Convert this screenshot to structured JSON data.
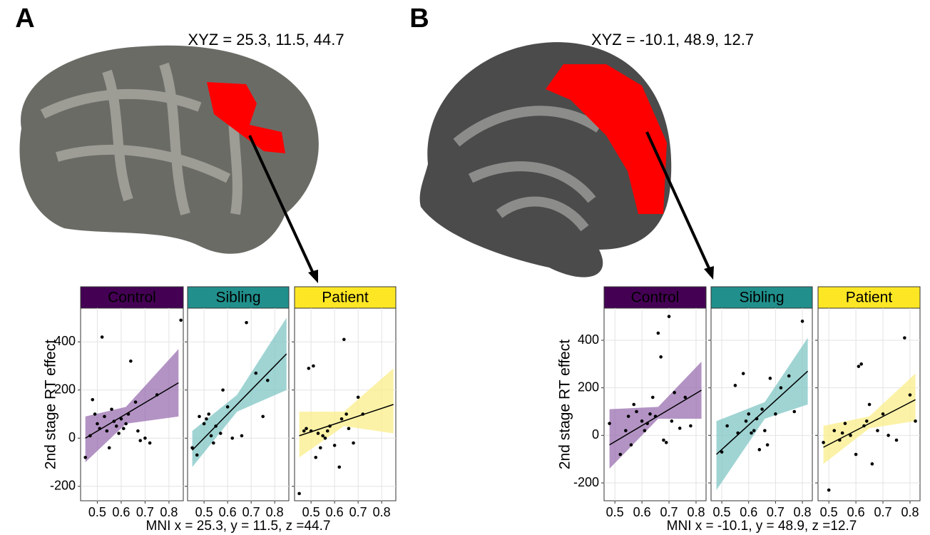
{
  "panels": [
    {
      "label": "A",
      "coords": "XYZ = 25.3, 11.5, 44.7",
      "xlabel": "MNI x = 25.3, y = 11.5, z =44.7",
      "ylabel": "2nd stage RT effect"
    },
    {
      "label": "B",
      "coords": "XYZ = -10.1, 48.9, 12.7",
      "xlabel": "MNI x = -10.1, y = 48.9, z =12.7",
      "ylabel": "2nd stage RT effect"
    }
  ],
  "chart_data": [
    {
      "type": "scatter",
      "title": "Control",
      "strip_color": "#440154",
      "band_color": "#9a6fb0",
      "color": "#000000",
      "x": [
        0.45,
        0.47,
        0.48,
        0.49,
        0.5,
        0.51,
        0.52,
        0.53,
        0.54,
        0.55,
        0.56,
        0.57,
        0.58,
        0.59,
        0.6,
        0.61,
        0.62,
        0.63,
        0.64,
        0.66,
        0.67,
        0.68,
        0.7,
        0.72,
        0.75,
        0.85
      ],
      "values": [
        -80,
        10,
        160,
        100,
        60,
        40,
        420,
        90,
        30,
        -40,
        120,
        70,
        50,
        20,
        80,
        40,
        60,
        100,
        320,
        150,
        30,
        -10,
        0,
        -20,
        180,
        490
      ],
      "fit": {
        "x": [
          0.45,
          0.84
        ],
        "y": [
          0,
          230
        ]
      },
      "band": {
        "x": [
          0.45,
          0.62,
          0.84
        ],
        "lower": [
          -100,
          60,
          90
        ],
        "upper": [
          90,
          130,
          370
        ]
      },
      "xlim": [
        0.43,
        0.86
      ],
      "ylim": [
        -260,
        540
      ],
      "xticks": [
        0.5,
        0.6,
        0.7,
        0.8
      ],
      "yticks": [
        -200,
        0,
        200,
        400
      ],
      "grid": true
    },
    {
      "type": "scatter",
      "title": "Sibling",
      "strip_color": "#21908c",
      "band_color": "#7fc6c4",
      "color": "#000000",
      "x": [
        0.45,
        0.47,
        0.48,
        0.5,
        0.51,
        0.52,
        0.53,
        0.54,
        0.55,
        0.57,
        0.58,
        0.6,
        0.62,
        0.66,
        0.68,
        0.72,
        0.75,
        0.77
      ],
      "values": [
        -40,
        -70,
        90,
        60,
        80,
        100,
        10,
        -20,
        50,
        20,
        200,
        130,
        0,
        10,
        480,
        270,
        90,
        240
      ],
      "fit": {
        "x": [
          0.45,
          0.85
        ],
        "y": [
          -50,
          350
        ]
      },
      "band": {
        "x": [
          0.45,
          0.64,
          0.85
        ],
        "lower": [
          -120,
          110,
          200
        ],
        "upper": [
          30,
          180,
          500
        ]
      },
      "xlim": [
        0.43,
        0.86
      ],
      "ylim": [
        -260,
        540
      ],
      "xticks": [
        0.5,
        0.6,
        0.7,
        0.8
      ],
      "yticks": [
        -200,
        0,
        200,
        400
      ],
      "grid": true
    },
    {
      "type": "scatter",
      "title": "Patient",
      "strip_color": "#fde725",
      "band_color": "#fbee8a",
      "color": "#000000",
      "x": [
        0.45,
        0.47,
        0.48,
        0.49,
        0.5,
        0.51,
        0.52,
        0.53,
        0.54,
        0.55,
        0.56,
        0.57,
        0.58,
        0.6,
        0.62,
        0.63,
        0.64,
        0.65,
        0.66,
        0.68,
        0.7,
        0.72
      ],
      "values": [
        -230,
        30,
        40,
        290,
        30,
        300,
        -80,
        20,
        -40,
        10,
        0,
        30,
        50,
        -30,
        -120,
        80,
        410,
        100,
        40,
        -20,
        170,
        100
      ],
      "fit": {
        "x": [
          0.45,
          0.85
        ],
        "y": [
          10,
          140
        ]
      },
      "band": {
        "x": [
          0.45,
          0.64,
          0.85
        ],
        "lower": [
          -80,
          50,
          20
        ],
        "upper": [
          110,
          110,
          290
        ]
      },
      "xlim": [
        0.43,
        0.86
      ],
      "ylim": [
        -260,
        540
      ],
      "xticks": [
        0.5,
        0.6,
        0.7,
        0.8
      ],
      "yticks": [
        -200,
        0,
        200,
        400
      ],
      "grid": true
    },
    {
      "type": "scatter",
      "title": "Control",
      "strip_color": "#440154",
      "band_color": "#9a6fb0",
      "color": "#000000",
      "x": [
        0.48,
        0.52,
        0.54,
        0.55,
        0.56,
        0.57,
        0.58,
        0.6,
        0.61,
        0.62,
        0.63,
        0.64,
        0.65,
        0.66,
        0.67,
        0.68,
        0.69,
        0.7,
        0.71,
        0.72,
        0.74,
        0.76,
        0.78
      ],
      "values": [
        50,
        -80,
        20,
        80,
        -40,
        130,
        100,
        60,
        20,
        50,
        90,
        160,
        80,
        430,
        330,
        -20,
        -30,
        500,
        60,
        180,
        30,
        160,
        40
      ],
      "fit": {
        "x": [
          0.48,
          0.82
        ],
        "y": [
          -40,
          190
        ]
      },
      "band": {
        "x": [
          0.48,
          0.66,
          0.82
        ],
        "lower": [
          -140,
          70,
          70
        ],
        "upper": [
          110,
          120,
          310
        ]
      },
      "xlim": [
        0.46,
        0.837
      ],
      "ylim": [
        -275,
        535
      ],
      "xticks": [
        0.5,
        0.6,
        0.7,
        0.8
      ],
      "yticks": [
        -200,
        0,
        200,
        400
      ],
      "grid": true
    },
    {
      "type": "scatter",
      "title": "Sibling",
      "strip_color": "#21908c",
      "band_color": "#7fc6c4",
      "color": "#000000",
      "x": [
        0.5,
        0.52,
        0.55,
        0.56,
        0.58,
        0.59,
        0.6,
        0.61,
        0.62,
        0.63,
        0.64,
        0.65,
        0.66,
        0.67,
        0.68,
        0.7,
        0.72,
        0.75,
        0.77,
        0.8
      ],
      "values": [
        -70,
        40,
        210,
        10,
        260,
        60,
        90,
        10,
        20,
        70,
        -60,
        110,
        20,
        -40,
        240,
        90,
        200,
        250,
        100,
        480
      ],
      "fit": {
        "x": [
          0.48,
          0.82
        ],
        "y": [
          -80,
          270
        ]
      },
      "band": {
        "x": [
          0.48,
          0.66,
          0.82
        ],
        "lower": [
          -230,
          70,
          130
        ],
        "upper": [
          60,
          140,
          410
        ]
      },
      "xlim": [
        0.46,
        0.837
      ],
      "ylim": [
        -275,
        535
      ],
      "xticks": [
        0.5,
        0.6,
        0.7,
        0.8
      ],
      "yticks": [
        -200,
        0,
        200,
        400
      ],
      "grid": true
    },
    {
      "type": "scatter",
      "title": "Patient",
      "strip_color": "#fde725",
      "band_color": "#fbee8a",
      "color": "#000000",
      "x": [
        0.48,
        0.5,
        0.52,
        0.54,
        0.55,
        0.56,
        0.58,
        0.6,
        0.61,
        0.62,
        0.63,
        0.64,
        0.65,
        0.66,
        0.68,
        0.7,
        0.72,
        0.75,
        0.78,
        0.8,
        0.82
      ],
      "values": [
        -30,
        -230,
        20,
        -20,
        10,
        50,
        0,
        -80,
        290,
        300,
        40,
        60,
        130,
        -120,
        20,
        90,
        0,
        -20,
        410,
        170,
        60
      ],
      "fit": {
        "x": [
          0.48,
          0.82
        ],
        "y": [
          -50,
          150
        ]
      },
      "band": {
        "x": [
          0.48,
          0.65,
          0.82
        ],
        "lower": [
          -120,
          30,
          60
        ],
        "upper": [
          40,
          80,
          260
        ]
      },
      "xlim": [
        0.46,
        0.837
      ],
      "ylim": [
        -275,
        535
      ],
      "xticks": [
        0.5,
        0.6,
        0.7,
        0.8
      ],
      "yticks": [
        -200,
        0,
        200,
        400
      ],
      "grid": true
    }
  ]
}
